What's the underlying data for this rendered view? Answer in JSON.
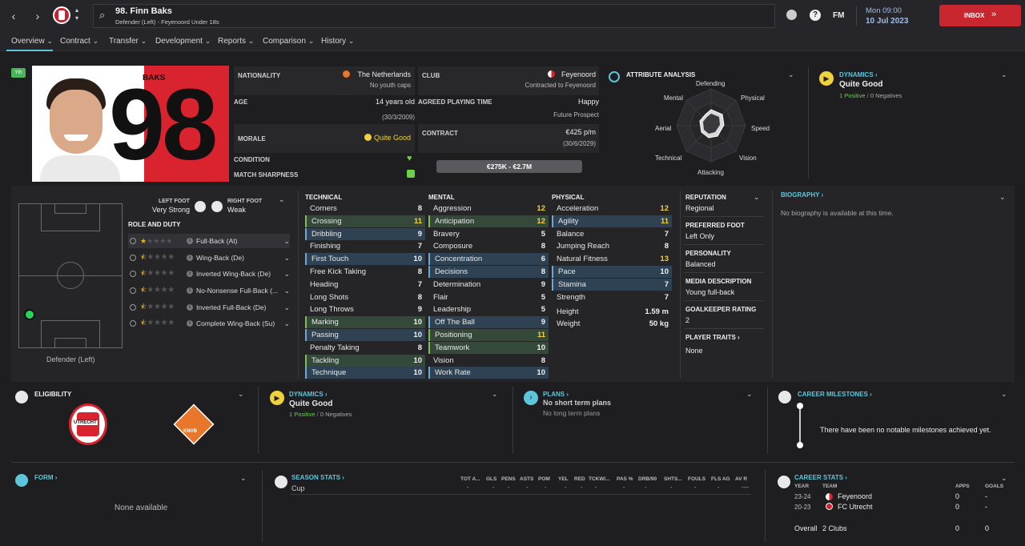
{
  "header": {
    "player_title": "98. Finn Baks",
    "player_subtitle": "Defender (Left) - Feyenoord Under 18s",
    "brand": "FM",
    "date_day": "Mon 09:00",
    "date_full": "10 Jul 2023",
    "inbox_label": "INBOX",
    "help_icon": "?"
  },
  "tabs": [
    {
      "label": "Overview"
    },
    {
      "label": "Contract"
    },
    {
      "label": "Transfer"
    },
    {
      "label": "Development"
    },
    {
      "label": "Reports"
    },
    {
      "label": "Comparison"
    },
    {
      "label": "History"
    }
  ],
  "profile": {
    "badge": "Yth",
    "shirt_name": "BAKS",
    "shirt_number": "98",
    "nationality_label": "NATIONALITY",
    "nationality": "The Netherlands",
    "youth_caps": "No youth caps",
    "age_label": "AGE",
    "age": "14 years old",
    "dob": "(30/3/2009)",
    "morale_label": "MORALE",
    "morale": "Quite Good",
    "condition_label": "CONDITION",
    "sharpness_label": "MATCH SHARPNESS",
    "club_label": "CLUB",
    "club": "Feyenoord",
    "contracted": "Contracted to Feyenoord",
    "apt_label": "AGREED PLAYING TIME",
    "apt": "Happy",
    "apt_sub": "Future Prospect",
    "contract_label": "CONTRACT",
    "wage": "€425 p/m",
    "contract_end": "(30/6/2029)",
    "value": "€275K - €2.7M"
  },
  "attr_analysis": {
    "title": "ATTRIBUTE ANALYSIS",
    "axes": [
      "Defending",
      "Physical",
      "Speed",
      "Vision",
      "Attacking",
      "Technical",
      "Aerial",
      "Mental"
    ]
  },
  "dynamics_top": {
    "title": "DYNAMICS",
    "value": "Quite Good",
    "positives": "1 Positive",
    "negatives": "0 Negatives"
  },
  "position": {
    "left_foot_label": "LEFT FOOT",
    "left_foot": "Very Strong",
    "right_foot_label": "RIGHT FOOT",
    "right_foot": "Weak",
    "role_title": "ROLE AND DUTY",
    "position_name": "Defender (Left)",
    "roles": [
      {
        "name": "Full-Back (At)",
        "stars": "1"
      },
      {
        "name": "Wing-Back (De)",
        "stars": "0.5"
      },
      {
        "name": "Inverted Wing-Back (De)",
        "stars": "0.5"
      },
      {
        "name": "No-Nonsense Full-Back (...",
        "stars": "0.5"
      },
      {
        "name": "Inverted Full-Back (De)",
        "stars": "0.5"
      },
      {
        "name": "Complete Wing-Back (Su)",
        "stars": "0.5"
      }
    ]
  },
  "attributes": {
    "technical_title": "TECHNICAL",
    "mental_title": "MENTAL",
    "physical_title": "PHYSICAL",
    "technical": [
      {
        "name": "Corners",
        "value": "8",
        "hl": ""
      },
      {
        "name": "Crossing",
        "value": "11",
        "hl": "g"
      },
      {
        "name": "Dribbling",
        "value": "9",
        "hl": "b"
      },
      {
        "name": "Finishing",
        "value": "7",
        "hl": ""
      },
      {
        "name": "First Touch",
        "value": "10",
        "hl": "b"
      },
      {
        "name": "Free Kick Taking",
        "value": "8",
        "hl": ""
      },
      {
        "name": "Heading",
        "value": "7",
        "hl": ""
      },
      {
        "name": "Long Shots",
        "value": "8",
        "hl": ""
      },
      {
        "name": "Long Throws",
        "value": "9",
        "hl": ""
      },
      {
        "name": "Marking",
        "value": "10",
        "hl": "g"
      },
      {
        "name": "Passing",
        "value": "10",
        "hl": "b"
      },
      {
        "name": "Penalty Taking",
        "value": "8",
        "hl": ""
      },
      {
        "name": "Tackling",
        "value": "10",
        "hl": "g"
      },
      {
        "name": "Technique",
        "value": "10",
        "hl": "b"
      }
    ],
    "mental": [
      {
        "name": "Aggression",
        "value": "12",
        "hl": ""
      },
      {
        "name": "Anticipation",
        "value": "12",
        "hl": "g"
      },
      {
        "name": "Bravery",
        "value": "5",
        "hl": ""
      },
      {
        "name": "Composure",
        "value": "8",
        "hl": ""
      },
      {
        "name": "Concentration",
        "value": "6",
        "hl": "b"
      },
      {
        "name": "Decisions",
        "value": "8",
        "hl": "b"
      },
      {
        "name": "Determination",
        "value": "9",
        "hl": ""
      },
      {
        "name": "Flair",
        "value": "5",
        "hl": ""
      },
      {
        "name": "Leadership",
        "value": "5",
        "hl": ""
      },
      {
        "name": "Off The Ball",
        "value": "9",
        "hl": "b"
      },
      {
        "name": "Positioning",
        "value": "11",
        "hl": "g"
      },
      {
        "name": "Teamwork",
        "value": "10",
        "hl": "g"
      },
      {
        "name": "Vision",
        "value": "8",
        "hl": ""
      },
      {
        "name": "Work Rate",
        "value": "10",
        "hl": "b"
      }
    ],
    "physical": [
      {
        "name": "Acceleration",
        "value": "12",
        "hl": ""
      },
      {
        "name": "Agility",
        "value": "11",
        "hl": "b"
      },
      {
        "name": "Balance",
        "value": "7",
        "hl": ""
      },
      {
        "name": "Jumping Reach",
        "value": "8",
        "hl": ""
      },
      {
        "name": "Natural Fitness",
        "value": "13",
        "hl": ""
      },
      {
        "name": "Pace",
        "value": "10",
        "hl": "b"
      },
      {
        "name": "Stamina",
        "value": "7",
        "hl": "b"
      },
      {
        "name": "Strength",
        "value": "7",
        "hl": ""
      }
    ],
    "height_label": "Height",
    "height": "1.59 m",
    "weight_label": "Weight",
    "weight": "50 kg"
  },
  "side_info": {
    "reputation_label": "REPUTATION",
    "reputation": "Regional",
    "pref_foot_label": "PREFERRED FOOT",
    "pref_foot": "Left Only",
    "personality_label": "PERSONALITY",
    "personality": "Balanced",
    "media_label": "MEDIA DESCRIPTION",
    "media": "Young full-back",
    "gk_label": "GOALKEEPER RATING",
    "gk": "2",
    "traits_label": "PLAYER TRAITS",
    "traits": "None"
  },
  "biography": {
    "title": "BIOGRAPHY",
    "text": "No biography is available at this time."
  },
  "eligibility": {
    "title": "ELIGIBILITY",
    "club_logo_text": "UTRECHT",
    "fed_logo_text": "KNVB"
  },
  "dynamics_bottom": {
    "title": "DYNAMICS",
    "value": "Quite Good",
    "positives": "1 Positive",
    "negatives": "0 Negatives"
  },
  "plans": {
    "title": "PLANS",
    "short": "No short term plans",
    "long": "No long term plans"
  },
  "milestones": {
    "title": "CAREER MILESTONES",
    "text": "There have been no notable milestones achieved yet."
  },
  "form": {
    "title": "FORM",
    "text": "None available"
  },
  "season_stats": {
    "title": "SEASON STATS",
    "headers": [
      "TOT A...",
      "GLS",
      "PENS",
      "ASTS",
      "POM",
      "YEL",
      "RED",
      "TCKW/...",
      "PAS %",
      "DRB/90",
      "SHTS...",
      "FOULS",
      "FLS AG",
      "AV R"
    ],
    "row_label": "Cup",
    "row_values": [
      "-",
      "-",
      "-",
      "-",
      "-",
      "-",
      "-",
      "-",
      "-",
      "-",
      "-",
      "-",
      "-",
      "----"
    ]
  },
  "career_stats": {
    "title": "CAREER STATS",
    "col_year": "YEAR",
    "col_team": "TEAM",
    "col_apps": "APPS",
    "col_goals": "GOALS",
    "rows": [
      {
        "year": "23-24",
        "team": "Feyenoord",
        "apps": "0",
        "goals": "-"
      },
      {
        "year": "20-23",
        "team": "FC Utrecht",
        "apps": "0",
        "goals": "-"
      }
    ],
    "overall_label": "Overall",
    "overall_team": "2 Clubs",
    "overall_apps": "0",
    "overall_goals": "0"
  },
  "colors": {
    "accent_cyan": "#5dc6dc",
    "inbox_red": "#c8272f",
    "highlight_green": "#34493a",
    "highlight_blue": "#2f4253",
    "yellow": "#f0d23c"
  }
}
